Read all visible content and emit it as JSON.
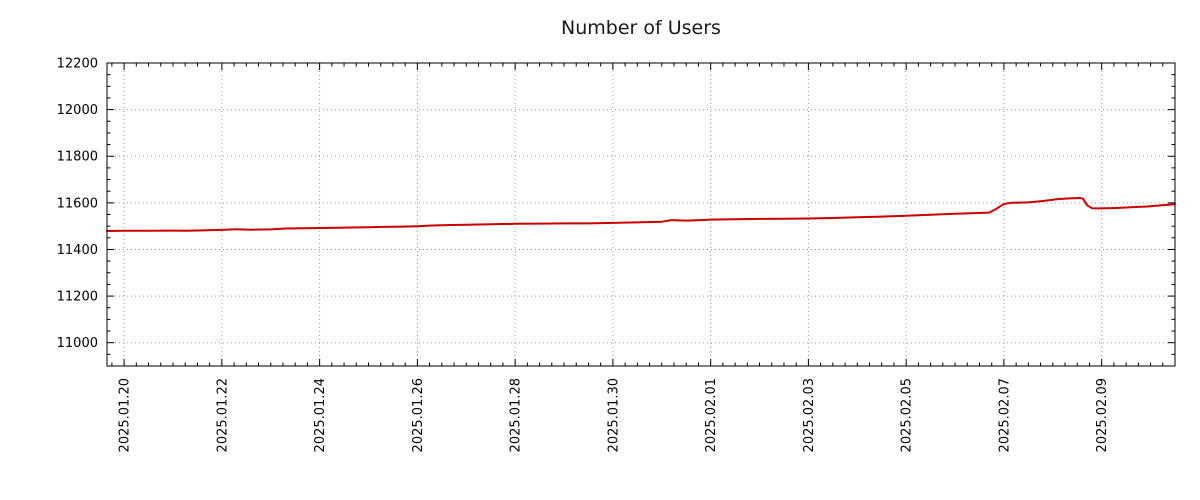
{
  "chart_data": {
    "type": "line",
    "title": "Number of Users",
    "xlabel": "",
    "ylabel": "",
    "grid": true,
    "legend": false,
    "x_axis": {
      "tick_labels": [
        "2025.01.20",
        "2025.01.22",
        "2025.01.24",
        "2025.01.26",
        "2025.01.28",
        "2025.01.30",
        "2025.02.01",
        "2025.02.03",
        "2025.02.05",
        "2025.02.07",
        "2025.02.09"
      ],
      "tick_days": [
        0,
        2,
        4,
        6,
        8,
        10,
        12,
        14,
        16,
        18,
        20
      ],
      "range_days": [
        -0.35,
        21.5
      ],
      "minor_step_days": 0.25
    },
    "y_axis": {
      "tick_values": [
        11000,
        11200,
        11400,
        11600,
        11800,
        12000,
        12200
      ],
      "range": [
        10900,
        12200
      ],
      "minor_step": 50
    },
    "series": [
      {
        "name": "Number of Users",
        "color": "#cc0000",
        "points": [
          [
            -0.35,
            11479
          ],
          [
            0,
            11480
          ],
          [
            0.5,
            11480
          ],
          [
            1,
            11481
          ],
          [
            1.3,
            11480
          ],
          [
            1.7,
            11482
          ],
          [
            2,
            11484
          ],
          [
            2.3,
            11487
          ],
          [
            2.6,
            11485
          ],
          [
            3,
            11486
          ],
          [
            3.3,
            11490
          ],
          [
            3.7,
            11491
          ],
          [
            4,
            11492
          ],
          [
            4.5,
            11494
          ],
          [
            5,
            11495
          ],
          [
            5.3,
            11497
          ],
          [
            5.7,
            11498
          ],
          [
            6,
            11500
          ],
          [
            6.3,
            11503
          ],
          [
            6.7,
            11505
          ],
          [
            7,
            11506
          ],
          [
            7.5,
            11508
          ],
          [
            8,
            11510
          ],
          [
            8.5,
            11511
          ],
          [
            9,
            11512
          ],
          [
            9.5,
            11512
          ],
          [
            10,
            11514
          ],
          [
            10.5,
            11516
          ],
          [
            11,
            11519
          ],
          [
            11.2,
            11526
          ],
          [
            11.5,
            11524
          ],
          [
            11.8,
            11526
          ],
          [
            12,
            11528
          ],
          [
            12.5,
            11530
          ],
          [
            13,
            11531
          ],
          [
            13.5,
            11532
          ],
          [
            14,
            11533
          ],
          [
            14.5,
            11535
          ],
          [
            15,
            11538
          ],
          [
            15.5,
            11541
          ],
          [
            16,
            11545
          ],
          [
            16.5,
            11549
          ],
          [
            17,
            11553
          ],
          [
            17.4,
            11556
          ],
          [
            17.7,
            11558
          ],
          [
            17.85,
            11575
          ],
          [
            18,
            11595
          ],
          [
            18.15,
            11600
          ],
          [
            18.5,
            11602
          ],
          [
            18.8,
            11608
          ],
          [
            19.1,
            11616
          ],
          [
            19.35,
            11619
          ],
          [
            19.55,
            11621
          ],
          [
            19.62,
            11618
          ],
          [
            19.7,
            11590
          ],
          [
            19.8,
            11577
          ],
          [
            20,
            11576
          ],
          [
            20.3,
            11578
          ],
          [
            20.6,
            11581
          ],
          [
            20.9,
            11584
          ],
          [
            21.2,
            11589
          ],
          [
            21.5,
            11594
          ]
        ]
      }
    ]
  }
}
